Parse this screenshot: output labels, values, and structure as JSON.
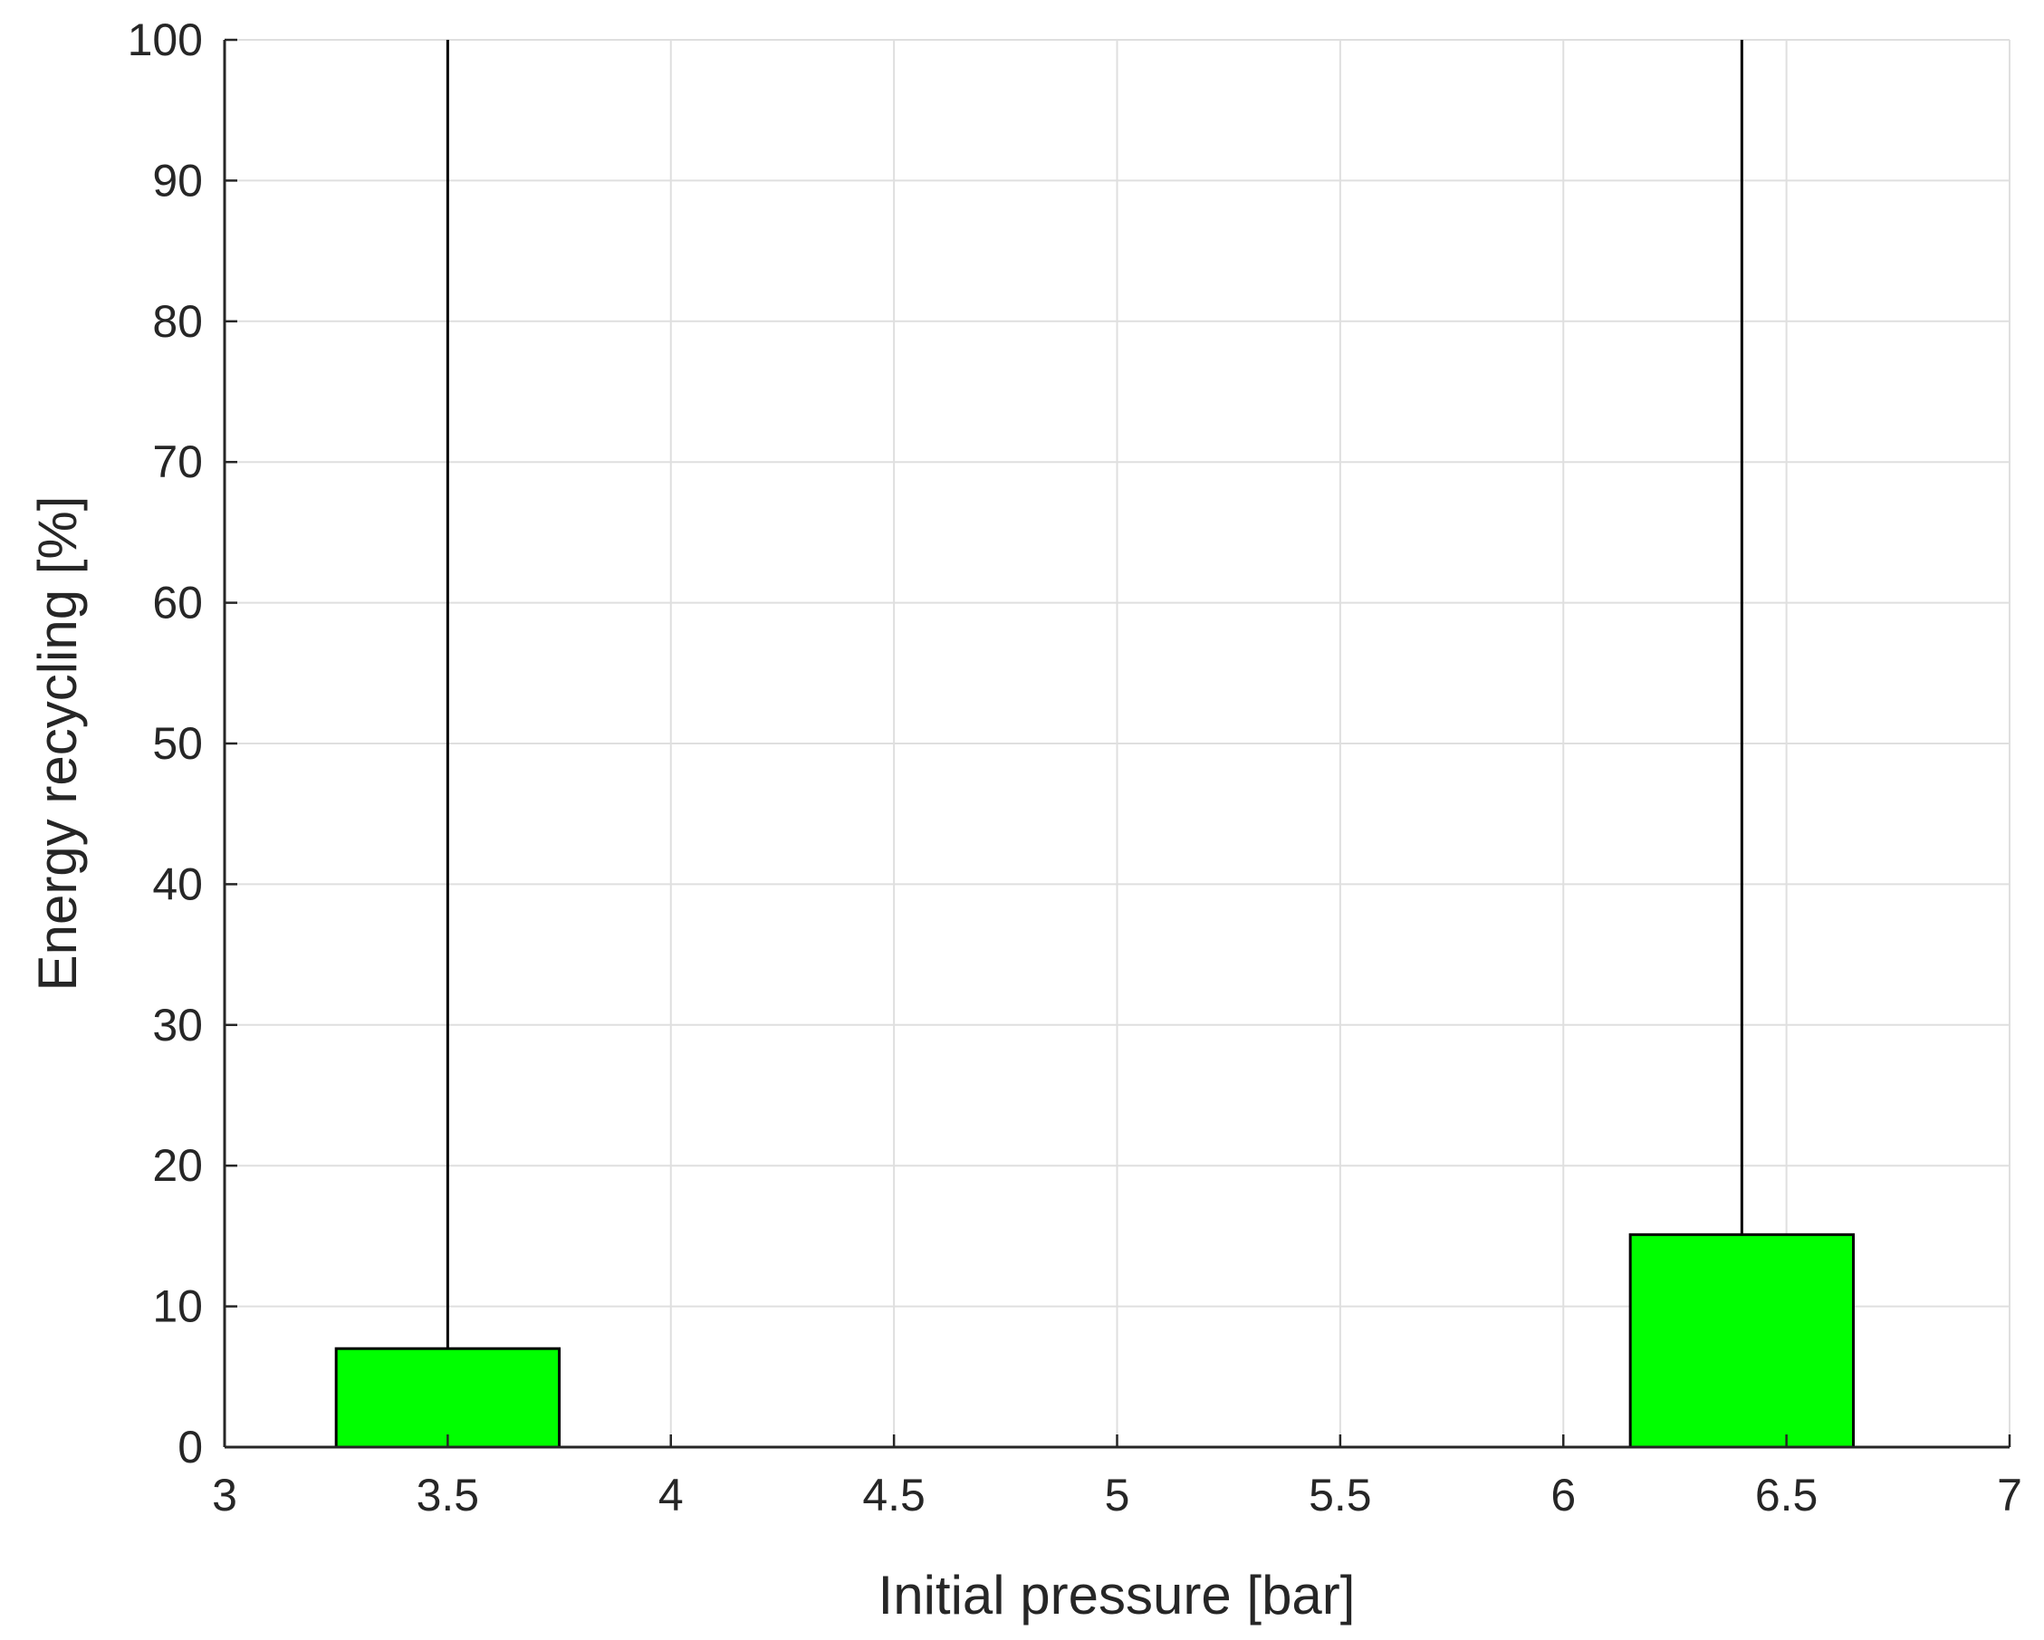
{
  "chart_data": {
    "type": "bar",
    "x": [
      3.5,
      6.4
    ],
    "values": [
      7,
      15.1
    ],
    "errors": [
      93,
      84.9
    ],
    "bar_width": 0.5,
    "color": "#00ff00",
    "xlabel": "Initial pressure [bar]",
    "ylabel": "Energy recycling [%]",
    "xlim": [
      3,
      7
    ],
    "xticks": [
      3,
      3.5,
      4,
      4.5,
      5,
      5.5,
      6,
      6.5,
      7
    ],
    "ylim": [
      0,
      100
    ],
    "yticks": [
      0,
      10,
      20,
      30,
      40,
      50,
      60,
      70,
      80,
      90,
      100
    ],
    "grid": true
  }
}
